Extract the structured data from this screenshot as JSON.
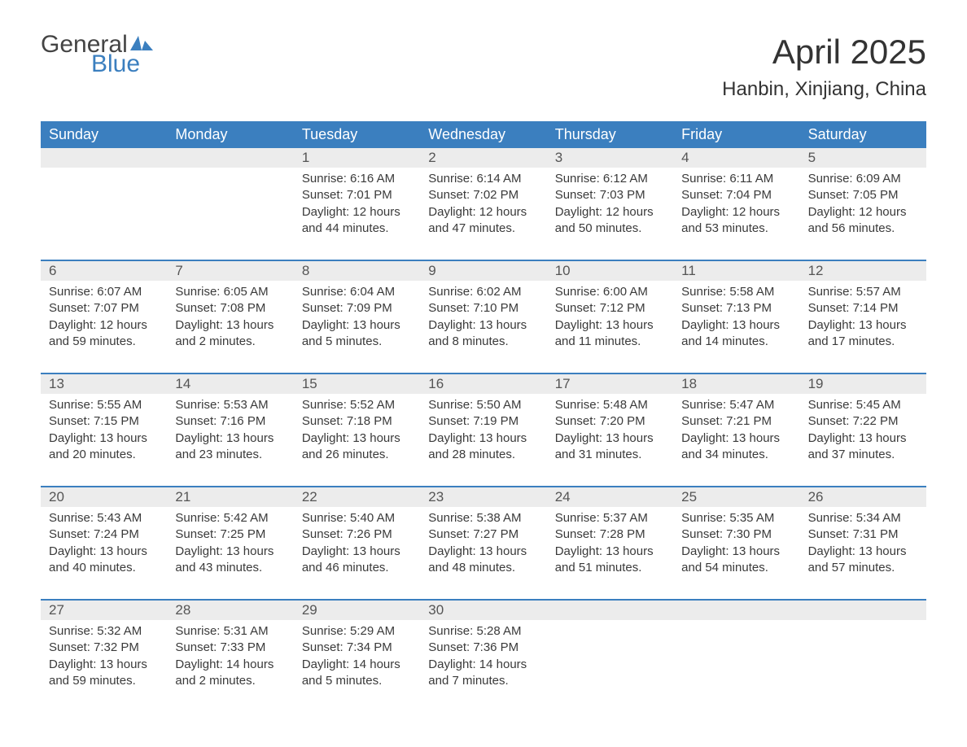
{
  "logo": {
    "text_general": "General",
    "text_blue": "Blue",
    "icon_color": "#3b7fbf"
  },
  "title": "April 2025",
  "location": "Hanbin, Xinjiang, China",
  "weekdays": [
    "Sunday",
    "Monday",
    "Tuesday",
    "Wednesday",
    "Thursday",
    "Friday",
    "Saturday"
  ],
  "colors": {
    "header_bg": "#3b7fbf",
    "header_text": "#ffffff",
    "day_num_bg": "#ececec",
    "text": "#3a3a3a",
    "separator": "#3b7fbf"
  },
  "weeks": [
    [
      {
        "day": "",
        "sunrise": "",
        "sunset": "",
        "daylight": ""
      },
      {
        "day": "",
        "sunrise": "",
        "sunset": "",
        "daylight": ""
      },
      {
        "day": "1",
        "sunrise": "Sunrise: 6:16 AM",
        "sunset": "Sunset: 7:01 PM",
        "daylight": "Daylight: 12 hours and 44 minutes."
      },
      {
        "day": "2",
        "sunrise": "Sunrise: 6:14 AM",
        "sunset": "Sunset: 7:02 PM",
        "daylight": "Daylight: 12 hours and 47 minutes."
      },
      {
        "day": "3",
        "sunrise": "Sunrise: 6:12 AM",
        "sunset": "Sunset: 7:03 PM",
        "daylight": "Daylight: 12 hours and 50 minutes."
      },
      {
        "day": "4",
        "sunrise": "Sunrise: 6:11 AM",
        "sunset": "Sunset: 7:04 PM",
        "daylight": "Daylight: 12 hours and 53 minutes."
      },
      {
        "day": "5",
        "sunrise": "Sunrise: 6:09 AM",
        "sunset": "Sunset: 7:05 PM",
        "daylight": "Daylight: 12 hours and 56 minutes."
      }
    ],
    [
      {
        "day": "6",
        "sunrise": "Sunrise: 6:07 AM",
        "sunset": "Sunset: 7:07 PM",
        "daylight": "Daylight: 12 hours and 59 minutes."
      },
      {
        "day": "7",
        "sunrise": "Sunrise: 6:05 AM",
        "sunset": "Sunset: 7:08 PM",
        "daylight": "Daylight: 13 hours and 2 minutes."
      },
      {
        "day": "8",
        "sunrise": "Sunrise: 6:04 AM",
        "sunset": "Sunset: 7:09 PM",
        "daylight": "Daylight: 13 hours and 5 minutes."
      },
      {
        "day": "9",
        "sunrise": "Sunrise: 6:02 AM",
        "sunset": "Sunset: 7:10 PM",
        "daylight": "Daylight: 13 hours and 8 minutes."
      },
      {
        "day": "10",
        "sunrise": "Sunrise: 6:00 AM",
        "sunset": "Sunset: 7:12 PM",
        "daylight": "Daylight: 13 hours and 11 minutes."
      },
      {
        "day": "11",
        "sunrise": "Sunrise: 5:58 AM",
        "sunset": "Sunset: 7:13 PM",
        "daylight": "Daylight: 13 hours and 14 minutes."
      },
      {
        "day": "12",
        "sunrise": "Sunrise: 5:57 AM",
        "sunset": "Sunset: 7:14 PM",
        "daylight": "Daylight: 13 hours and 17 minutes."
      }
    ],
    [
      {
        "day": "13",
        "sunrise": "Sunrise: 5:55 AM",
        "sunset": "Sunset: 7:15 PM",
        "daylight": "Daylight: 13 hours and 20 minutes."
      },
      {
        "day": "14",
        "sunrise": "Sunrise: 5:53 AM",
        "sunset": "Sunset: 7:16 PM",
        "daylight": "Daylight: 13 hours and 23 minutes."
      },
      {
        "day": "15",
        "sunrise": "Sunrise: 5:52 AM",
        "sunset": "Sunset: 7:18 PM",
        "daylight": "Daylight: 13 hours and 26 minutes."
      },
      {
        "day": "16",
        "sunrise": "Sunrise: 5:50 AM",
        "sunset": "Sunset: 7:19 PM",
        "daylight": "Daylight: 13 hours and 28 minutes."
      },
      {
        "day": "17",
        "sunrise": "Sunrise: 5:48 AM",
        "sunset": "Sunset: 7:20 PM",
        "daylight": "Daylight: 13 hours and 31 minutes."
      },
      {
        "day": "18",
        "sunrise": "Sunrise: 5:47 AM",
        "sunset": "Sunset: 7:21 PM",
        "daylight": "Daylight: 13 hours and 34 minutes."
      },
      {
        "day": "19",
        "sunrise": "Sunrise: 5:45 AM",
        "sunset": "Sunset: 7:22 PM",
        "daylight": "Daylight: 13 hours and 37 minutes."
      }
    ],
    [
      {
        "day": "20",
        "sunrise": "Sunrise: 5:43 AM",
        "sunset": "Sunset: 7:24 PM",
        "daylight": "Daylight: 13 hours and 40 minutes."
      },
      {
        "day": "21",
        "sunrise": "Sunrise: 5:42 AM",
        "sunset": "Sunset: 7:25 PM",
        "daylight": "Daylight: 13 hours and 43 minutes."
      },
      {
        "day": "22",
        "sunrise": "Sunrise: 5:40 AM",
        "sunset": "Sunset: 7:26 PM",
        "daylight": "Daylight: 13 hours and 46 minutes."
      },
      {
        "day": "23",
        "sunrise": "Sunrise: 5:38 AM",
        "sunset": "Sunset: 7:27 PM",
        "daylight": "Daylight: 13 hours and 48 minutes."
      },
      {
        "day": "24",
        "sunrise": "Sunrise: 5:37 AM",
        "sunset": "Sunset: 7:28 PM",
        "daylight": "Daylight: 13 hours and 51 minutes."
      },
      {
        "day": "25",
        "sunrise": "Sunrise: 5:35 AM",
        "sunset": "Sunset: 7:30 PM",
        "daylight": "Daylight: 13 hours and 54 minutes."
      },
      {
        "day": "26",
        "sunrise": "Sunrise: 5:34 AM",
        "sunset": "Sunset: 7:31 PM",
        "daylight": "Daylight: 13 hours and 57 minutes."
      }
    ],
    [
      {
        "day": "27",
        "sunrise": "Sunrise: 5:32 AM",
        "sunset": "Sunset: 7:32 PM",
        "daylight": "Daylight: 13 hours and 59 minutes."
      },
      {
        "day": "28",
        "sunrise": "Sunrise: 5:31 AM",
        "sunset": "Sunset: 7:33 PM",
        "daylight": "Daylight: 14 hours and 2 minutes."
      },
      {
        "day": "29",
        "sunrise": "Sunrise: 5:29 AM",
        "sunset": "Sunset: 7:34 PM",
        "daylight": "Daylight: 14 hours and 5 minutes."
      },
      {
        "day": "30",
        "sunrise": "Sunrise: 5:28 AM",
        "sunset": "Sunset: 7:36 PM",
        "daylight": "Daylight: 14 hours and 7 minutes."
      },
      {
        "day": "",
        "sunrise": "",
        "sunset": "",
        "daylight": ""
      },
      {
        "day": "",
        "sunrise": "",
        "sunset": "",
        "daylight": ""
      },
      {
        "day": "",
        "sunrise": "",
        "sunset": "",
        "daylight": ""
      }
    ]
  ]
}
